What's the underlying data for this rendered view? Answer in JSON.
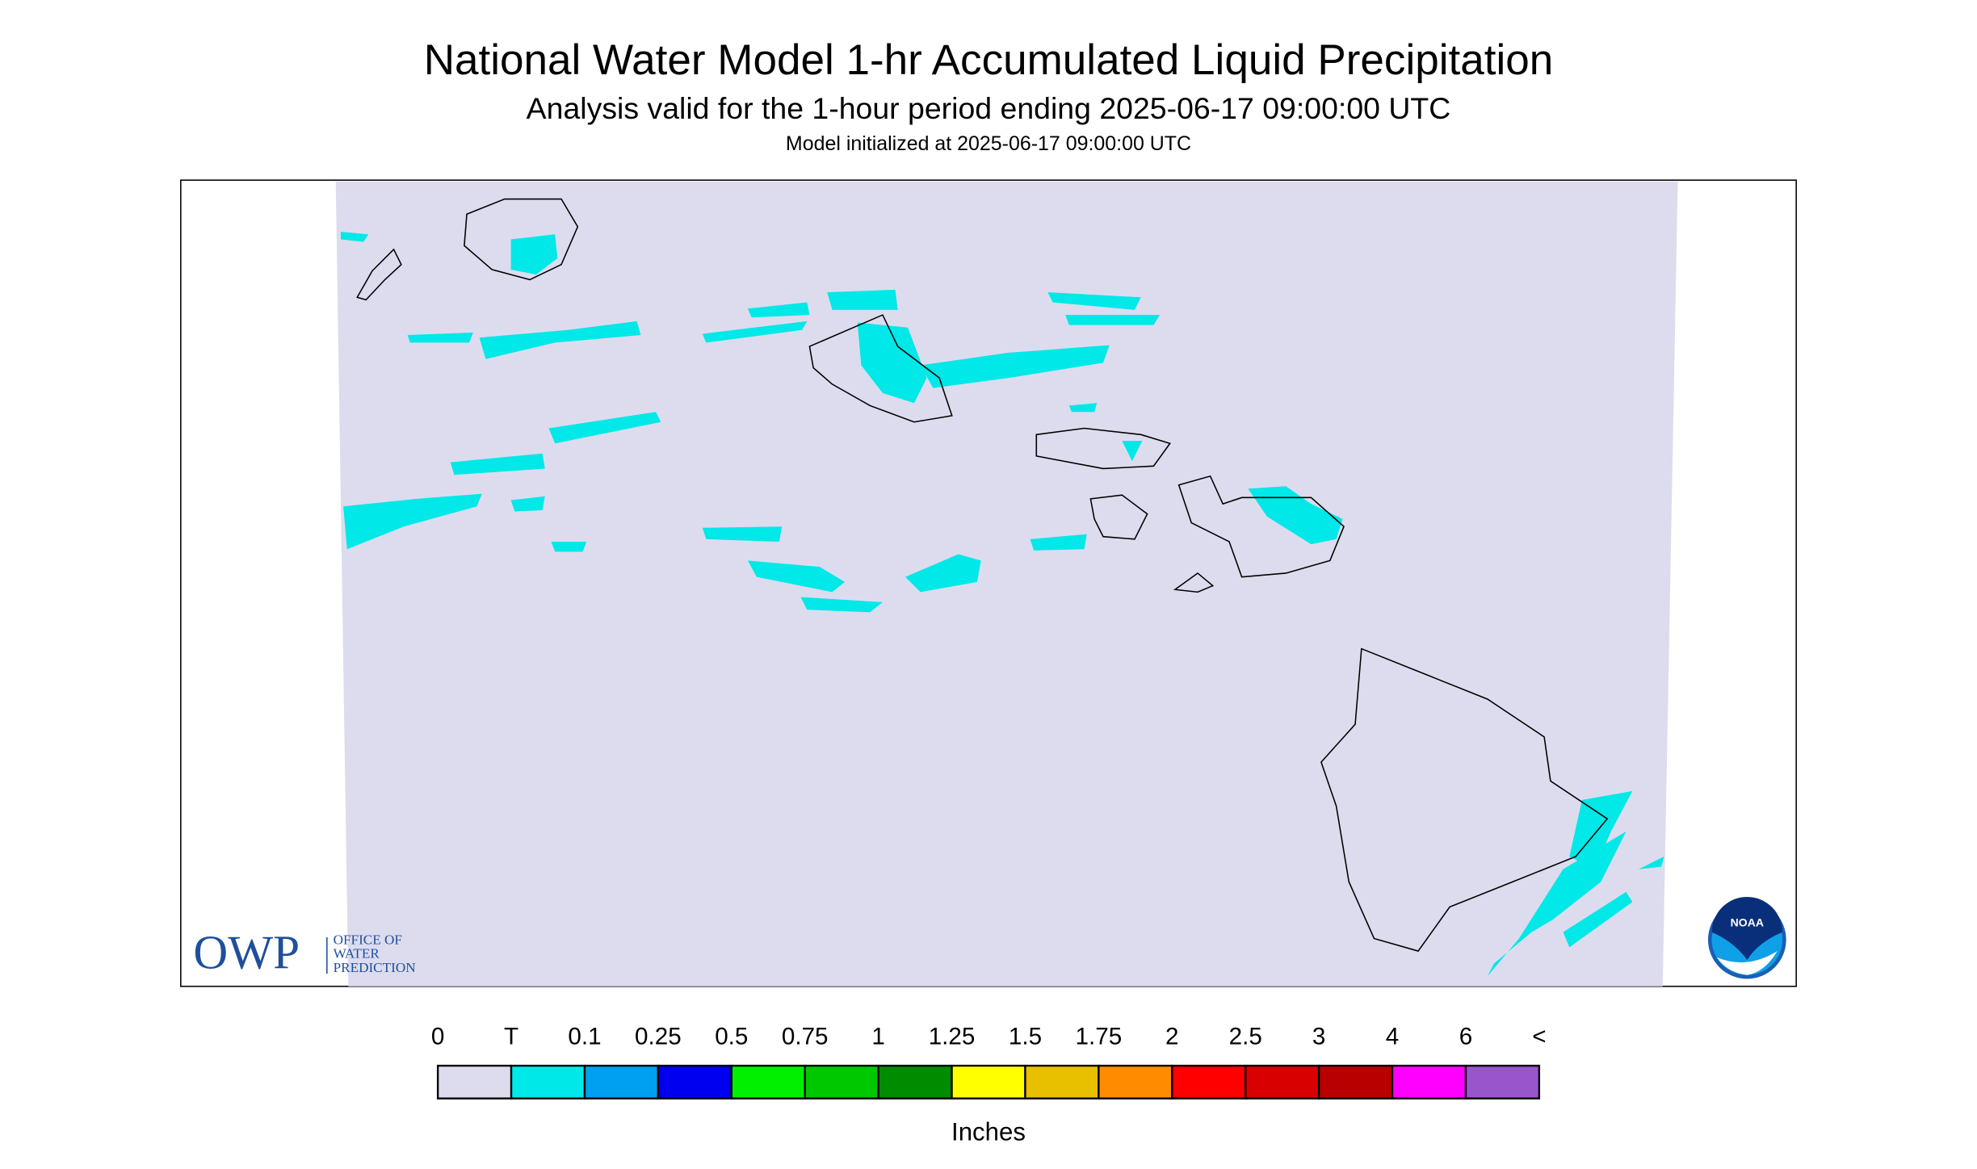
{
  "header": {
    "title": "National Water Model 1-hr Accumulated Liquid Precipitation",
    "subtitle": "Analysis valid for the 1-hour period ending 2025-06-17 09:00:00 UTC",
    "note": "Model initialized at 2025-06-17 09:00:00 UTC"
  },
  "logos": {
    "owp": "OWP",
    "owp_lines": [
      "OFFICE OF",
      "WATER",
      "PREDICTION"
    ],
    "noaa": "NOAA"
  },
  "legend": {
    "labels": [
      "0",
      "T",
      "0.1",
      "0.25",
      "0.5",
      "0.75",
      "1",
      "1.25",
      "1.5",
      "1.75",
      "2",
      "2.5",
      "3",
      "4",
      "6",
      "<"
    ],
    "colors": [
      "#dcdcee",
      "#00e8e8",
      "#00a0f0",
      "#0000f0",
      "#00f000",
      "#00c800",
      "#008c00",
      "#ffff00",
      "#e8c000",
      "#ff8c00",
      "#ff0000",
      "#d80000",
      "#b80000",
      "#ff00ff",
      "#9955cc"
    ],
    "unit": "Inches"
  }
}
